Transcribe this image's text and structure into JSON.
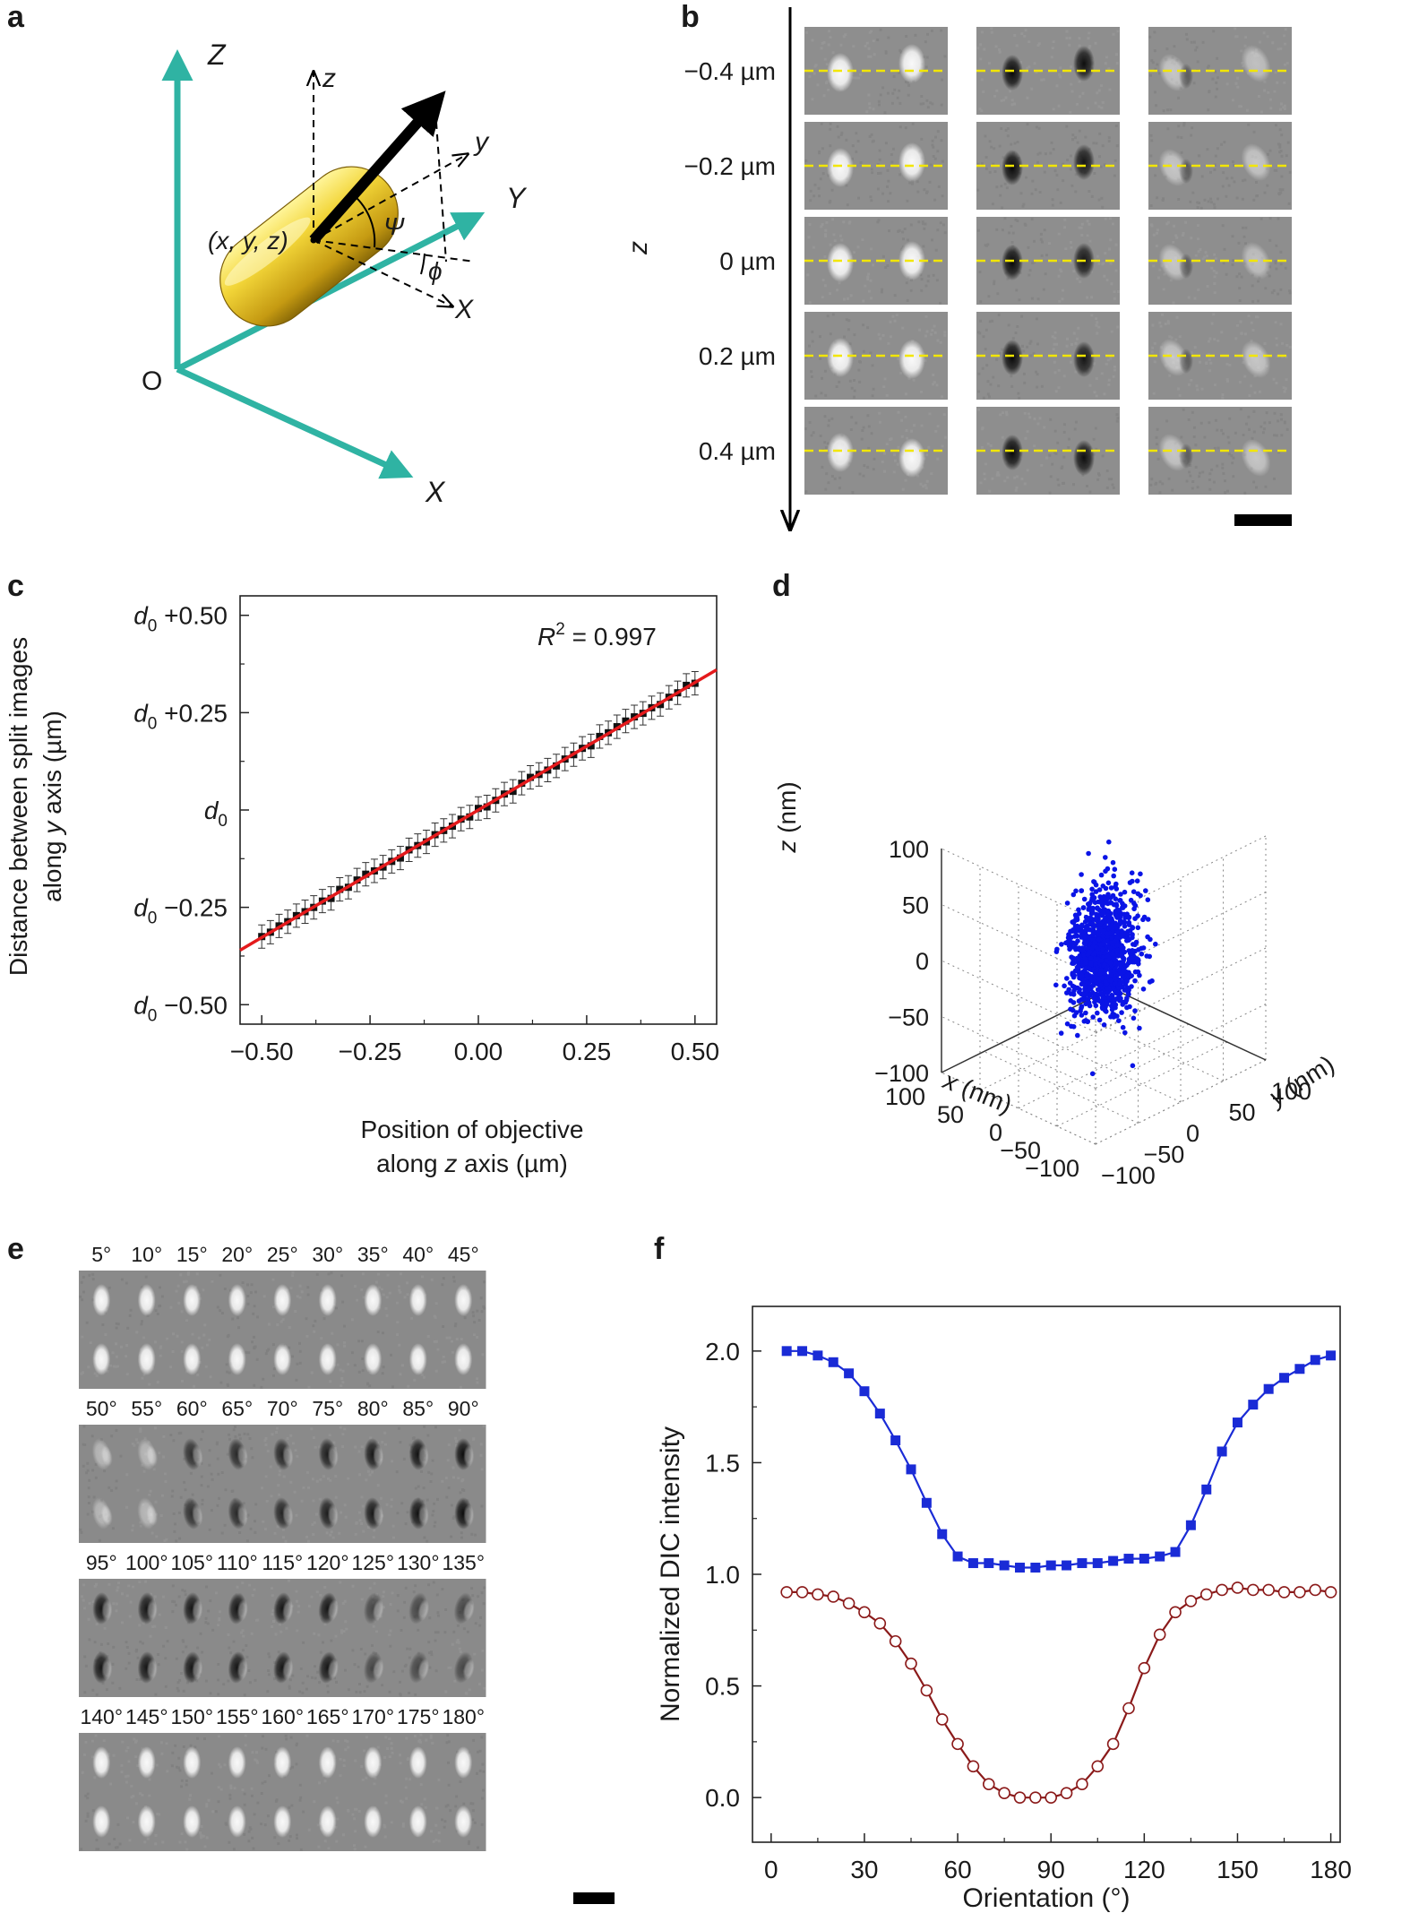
{
  "panel_labels": {
    "a": "a",
    "b": "b",
    "c": "c",
    "d": "d",
    "e": "e",
    "f": "f"
  },
  "panel_a": {
    "Z": "Z",
    "Y": "Y",
    "X": "X",
    "O": "O",
    "z": "z",
    "y": "y",
    "x": "X",
    "point": "(x, y, z)",
    "psi": "Ψ",
    "phi": "ϕ",
    "colors": {
      "axis": "#2fb3a3",
      "rod": "#d9b826",
      "arrow": "#000000"
    }
  },
  "panel_b": {
    "axis_label": "z",
    "rows": [
      "−0.4 µm",
      "−0.2 µm",
      "0 µm",
      "0.2 µm",
      "0.4 µm"
    ],
    "pairs": [
      [
        [
          0.95,
          0.95
        ],
        [
          -0.95,
          -0.9
        ],
        [
          0.5,
          0.45
        ]
      ],
      [
        [
          0.95,
          0.95
        ],
        [
          -0.95,
          -0.85
        ],
        [
          0.5,
          0.5
        ]
      ],
      [
        [
          0.95,
          0.95
        ],
        [
          -0.95,
          -0.85
        ],
        [
          0.5,
          0.45
        ]
      ],
      [
        [
          0.95,
          0.95
        ],
        [
          -0.95,
          -0.85
        ],
        [
          0.5,
          0.5
        ]
      ],
      [
        [
          0.9,
          0.95
        ],
        [
          -0.95,
          -0.9
        ],
        [
          0.5,
          0.5
        ]
      ]
    ],
    "guide_color": "#f2e600"
  },
  "panel_e": {
    "groups": [
      [
        "5°",
        "10°",
        "15°",
        "20°",
        "25°",
        "30°",
        "35°",
        "40°",
        "45°"
      ],
      [
        "50°",
        "55°",
        "60°",
        "65°",
        "70°",
        "75°",
        "80°",
        "85°",
        "90°"
      ],
      [
        "95°",
        "100°",
        "105°",
        "110°",
        "115°",
        "120°",
        "125°",
        "130°",
        "135°"
      ],
      [
        "140°",
        "145°",
        "150°",
        "155°",
        "160°",
        "165°",
        "170°",
        "175°",
        "180°"
      ]
    ],
    "label_color": "#d2202a"
  },
  "chart_data": [
    {
      "id": "c",
      "type": "scatter",
      "title": "",
      "annotation": "R² = 0.997",
      "annotation_r": "R",
      "annotation_sup": "2",
      "annotation_rest": " = 0.997",
      "xlabel_line1": "Position of objective",
      "xlabel_line2_a": "along ",
      "xlabel_line2_b": "z",
      "xlabel_line2_c": " axis (µm)",
      "ylabel_line1": "Distance between split images",
      "ylabel_line2_a": "along ",
      "ylabel_line2_b": "y",
      "ylabel_line2_c": " axis (µm)",
      "xlim": [
        -0.55,
        0.55
      ],
      "ylim": [
        -0.55,
        0.55
      ],
      "xticks": [
        -0.5,
        -0.25,
        0.0,
        0.25,
        0.5
      ],
      "xtick_labels": [
        "−0.50",
        "−0.25",
        "0.00",
        "0.25",
        "0.50"
      ],
      "yticks": [
        -0.5,
        -0.25,
        0.0,
        0.25,
        0.5
      ],
      "ytick_labels": [
        "d0 −0.50",
        "d0 −0.25",
        "d0",
        "d0 +0.25",
        "d0 +0.50"
      ],
      "ytick_base": "d",
      "ytick_sub": "0",
      "ytick_suffix": [
        " −0.50",
        " −0.25",
        "",
        " +0.25",
        " +0.50"
      ],
      "fit": {
        "slope": 0.655,
        "intercept": 0.0,
        "x_range": [
          -0.55,
          0.55
        ],
        "color": "#e41a1c"
      },
      "points_x_range": [
        -0.5,
        0.5
      ],
      "points_count": 51,
      "error": 0.03
    },
    {
      "id": "d",
      "type": "scatter",
      "title": "",
      "xlabel_a": "x",
      "xlabel_b": " (nm)",
      "ylabel_a": "y",
      "ylabel_b": " (nm)",
      "zlabel_a": "z",
      "zlabel_b": " (nm)",
      "xticks": [
        -100,
        -50,
        0,
        50,
        100
      ],
      "xtick_labels": [
        "−100",
        "−50",
        "0",
        "50",
        "100"
      ],
      "yticks": [
        -100,
        -50,
        0,
        50,
        100
      ],
      "ytick_labels": [
        "−100",
        "−50",
        "0",
        "50",
        "100"
      ],
      "zticks": [
        -100,
        -50,
        0,
        50,
        100
      ],
      "ztick_labels": [
        "−100",
        "−50",
        "0",
        "50",
        "100"
      ],
      "xlim": [
        -100,
        100
      ],
      "ylim": [
        -100,
        100
      ],
      "zlim": [
        -100,
        100
      ],
      "sigma_x": 15,
      "sigma_y": 15,
      "sigma_z": 26,
      "n_points": 1100,
      "color": "#0a14e6"
    },
    {
      "id": "f",
      "type": "line",
      "title": "",
      "xlabel": "Orientation (°)",
      "ylabel": "Normalized DIC intensity",
      "xlim": [
        -6,
        183
      ],
      "ylim": [
        -0.2,
        2.2
      ],
      "xticks": [
        0,
        30,
        60,
        90,
        120,
        150,
        180
      ],
      "xtick_labels": [
        "0",
        "30",
        "60",
        "90",
        "120",
        "150",
        "180"
      ],
      "yticks": [
        0.0,
        0.5,
        1.0,
        1.5,
        2.0
      ],
      "ytick_labels": [
        "0.0",
        "0.5",
        "1.0",
        "1.5",
        "2.0"
      ],
      "x": [
        5,
        10,
        15,
        20,
        25,
        30,
        35,
        40,
        45,
        50,
        55,
        60,
        65,
        70,
        75,
        80,
        85,
        90,
        95,
        100,
        105,
        110,
        115,
        120,
        125,
        130,
        135,
        140,
        145,
        150,
        155,
        160,
        165,
        170,
        175,
        180
      ],
      "series": [
        {
          "name": "blue",
          "color": "#1a2bd6",
          "marker": "square",
          "values": [
            2.0,
            2.0,
            1.98,
            1.95,
            1.9,
            1.82,
            1.72,
            1.6,
            1.47,
            1.32,
            1.18,
            1.08,
            1.05,
            1.05,
            1.04,
            1.03,
            1.03,
            1.04,
            1.04,
            1.05,
            1.05,
            1.06,
            1.07,
            1.07,
            1.08,
            1.1,
            1.22,
            1.38,
            1.55,
            1.68,
            1.76,
            1.83,
            1.88,
            1.92,
            1.96,
            1.98
          ]
        },
        {
          "name": "red",
          "color": "#8b1a1a",
          "marker": "circle-open",
          "values": [
            0.92,
            0.92,
            0.91,
            0.9,
            0.87,
            0.83,
            0.78,
            0.7,
            0.6,
            0.48,
            0.35,
            0.24,
            0.14,
            0.06,
            0.02,
            0.0,
            0.0,
            0.0,
            0.02,
            0.06,
            0.14,
            0.24,
            0.4,
            0.58,
            0.73,
            0.83,
            0.88,
            0.91,
            0.93,
            0.94,
            0.93,
            0.93,
            0.92,
            0.92,
            0.93,
            0.92
          ]
        }
      ]
    }
  ]
}
